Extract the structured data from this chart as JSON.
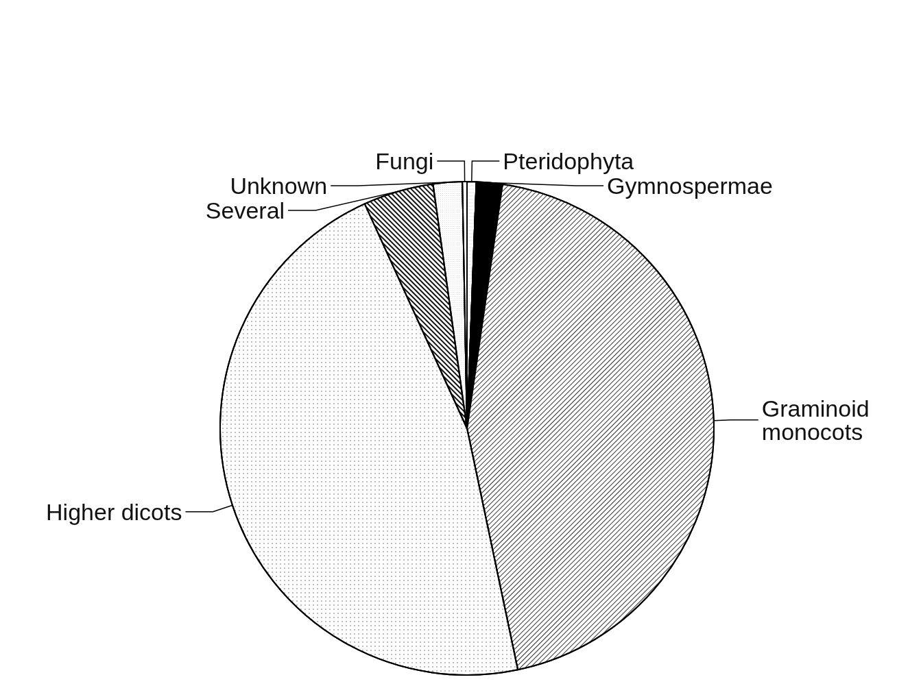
{
  "chart_data": {
    "type": "pie",
    "categories": [
      "Pteridophyta",
      "Gymnospermae",
      "Graminoid monocots",
      "Higher dicots",
      "Several",
      "Unknown",
      "Fungi"
    ],
    "values": [
      0.6,
      1.7,
      44.4,
      46.5,
      4.6,
      1.9,
      0.3
    ],
    "colors": [
      "#ffffff",
      "#000000",
      "#ffffff",
      "#ffffff",
      "#ffffff",
      "#ffffff",
      "#ffffff"
    ]
  }
}
